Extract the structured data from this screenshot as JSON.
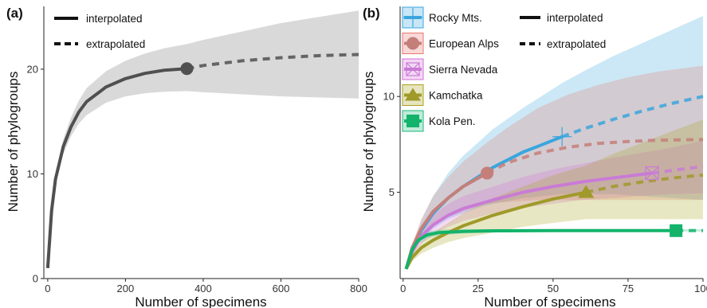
{
  "chart_data": [
    {
      "panel_label": "(a)",
      "type": "line",
      "xlabel": "Number of specimens",
      "ylabel": "Number of phylogroups",
      "xlim": [
        -10,
        800
      ],
      "ylim": [
        0,
        26
      ],
      "xticks": [
        0,
        200,
        400,
        600,
        800
      ],
      "yticks": [
        0,
        10,
        20
      ],
      "grid": false,
      "legend": {
        "placement": "top-left",
        "entries": [
          {
            "label": "interpolated",
            "style": "solid"
          },
          {
            "label": "extrapolated",
            "style": "dashed"
          }
        ]
      },
      "series": [
        {
          "color": "#505050",
          "band_color": "#cccccc",
          "interpolated": {
            "x": [
              0,
              10,
              20,
              40,
              60,
              80,
              100,
              150,
              200,
              250,
              300,
              358
            ],
            "y": [
              1,
              6.5,
              9.5,
              12.6,
              14.5,
              15.9,
              16.9,
              18.3,
              19.1,
              19.6,
              19.9,
              20.05
            ]
          },
          "extrapolated": {
            "x": [
              358,
              400,
              500,
              600,
              700,
              800
            ],
            "y": [
              20.05,
              20.35,
              20.8,
              21.1,
              21.3,
              21.4
            ]
          },
          "lower": [
            1,
            6.3,
            9.1,
            11.9,
            13.6,
            14.8,
            15.6,
            16.8,
            17.4,
            17.7,
            17.85,
            17.9,
            17.8,
            17.6,
            17.4,
            17.3,
            17.2
          ],
          "upper": [
            1,
            6.7,
            9.9,
            13.3,
            15.4,
            17.0,
            18.2,
            19.8,
            20.8,
            21.5,
            22.0,
            22.4,
            22.8,
            23.6,
            24.4,
            25.0,
            25.6
          ],
          "band_x": [
            0,
            10,
            20,
            40,
            60,
            80,
            100,
            150,
            200,
            250,
            300,
            358,
            400,
            500,
            600,
            700,
            800
          ],
          "observed": {
            "x": 358,
            "y": 20.05,
            "marker": "circle"
          }
        }
      ]
    },
    {
      "panel_label": "(b)",
      "type": "line",
      "xlabel": "Number of specimens",
      "ylabel": "Number of phylogroups",
      "xlim": [
        -1,
        100
      ],
      "ylim": [
        0.5,
        14.7
      ],
      "xticks": [
        0,
        25,
        50,
        75,
        100
      ],
      "yticks": [
        5,
        10
      ],
      "grid": false,
      "legend": {
        "placement": "top-left",
        "entries": [
          {
            "label": "interpolated",
            "style": "solid"
          },
          {
            "label": "extrapolated",
            "style": "dashed"
          }
        ]
      },
      "series": [
        {
          "name": "Rocky Mts.",
          "color": "#3aa6dd",
          "marker": "plus",
          "observed": {
            "x": 53,
            "y": 7.9
          },
          "interpolated": {
            "x": [
              1,
              3,
              6,
              10,
              15,
              20,
              25,
              30,
              35,
              40,
              45,
              53
            ],
            "y": [
              1,
              2.0,
              3.0,
              3.9,
              4.7,
              5.3,
              5.8,
              6.3,
              6.7,
              7.1,
              7.4,
              7.9
            ]
          },
          "extrapolated": {
            "x": [
              53,
              60,
              70,
              80,
              90,
              100
            ],
            "y": [
              7.9,
              8.3,
              8.8,
              9.25,
              9.65,
              10.0
            ]
          },
          "band_x": [
            1,
            3,
            6,
            10,
            15,
            20,
            25,
            30,
            40,
            53,
            60,
            70,
            80,
            90,
            100
          ],
          "lower": [
            1,
            1.8,
            2.5,
            3.1,
            3.6,
            3.9,
            4.2,
            4.4,
            4.7,
            4.9,
            4.9,
            4.9,
            4.8,
            4.7,
            4.6
          ],
          "upper": [
            1,
            2.2,
            3.5,
            4.8,
            6.0,
            6.9,
            7.6,
            8.3,
            9.4,
            10.7,
            11.3,
            12.1,
            12.8,
            13.5,
            14.2
          ]
        },
        {
          "name": "European Alps",
          "color": "#e9776e",
          "line_color": "#c47f7a",
          "marker": "circle",
          "observed": {
            "x": 28,
            "y": 6.0
          },
          "interpolated": {
            "x": [
              1,
              3,
              6,
              10,
              15,
              20,
              28
            ],
            "y": [
              1,
              2.1,
              3.1,
              4.0,
              4.7,
              5.3,
              6.0
            ]
          },
          "extrapolated": {
            "x": [
              28,
              35,
              45,
              55,
              65,
              75,
              85,
              100
            ],
            "y": [
              6.0,
              6.55,
              7.05,
              7.35,
              7.55,
              7.65,
              7.72,
              7.75
            ]
          },
          "band_x": [
            1,
            3,
            6,
            10,
            15,
            20,
            28,
            35,
            45,
            55,
            65,
            75,
            85,
            100
          ],
          "lower": [
            1,
            1.9,
            2.6,
            3.2,
            3.7,
            4.0,
            4.4,
            4.5,
            4.6,
            4.6,
            4.6,
            4.6,
            4.6,
            4.6
          ],
          "upper": [
            1,
            2.3,
            3.6,
            4.8,
            5.8,
            6.6,
            7.6,
            8.4,
            9.4,
            10.1,
            10.6,
            11.0,
            11.3,
            11.6
          ]
        },
        {
          "name": "Sierra Nevada",
          "color": "#d36fd8",
          "line_color": "#c97bd6",
          "marker": "square-cross",
          "observed": {
            "x": 83,
            "y": 6.0
          },
          "interpolated": {
            "x": [
              1,
              3,
              6,
              10,
              15,
              20,
              30,
              40,
              50,
              60,
              70,
              83
            ],
            "y": [
              1,
              1.9,
              2.7,
              3.3,
              3.8,
              4.15,
              4.6,
              5.0,
              5.3,
              5.55,
              5.75,
              6.0
            ]
          },
          "extrapolated": {
            "x": [
              83,
              90,
              100
            ],
            "y": [
              6.0,
              6.15,
              6.35
            ]
          },
          "band_x": [
            1,
            3,
            6,
            10,
            15,
            20,
            30,
            40,
            50,
            60,
            70,
            83,
            90,
            100
          ],
          "lower": [
            1,
            1.7,
            2.3,
            2.8,
            3.2,
            3.5,
            3.9,
            4.2,
            4.4,
            4.6,
            4.7,
            4.85,
            4.9,
            4.95
          ],
          "upper": [
            1,
            2.1,
            3.1,
            3.8,
            4.4,
            4.8,
            5.3,
            5.8,
            6.2,
            6.5,
            6.8,
            7.15,
            7.35,
            7.7
          ]
        },
        {
          "name": "Kamchatka",
          "color": "#a8a21a",
          "line_color": "#9f9a2a",
          "marker": "triangle",
          "observed": {
            "x": 61,
            "y": 5.0
          },
          "interpolated": {
            "x": [
              1,
              3,
              6,
              10,
              15,
              20,
              30,
              40,
              50,
              61
            ],
            "y": [
              1,
              1.6,
              2.1,
              2.5,
              2.9,
              3.25,
              3.8,
              4.25,
              4.65,
              5.0
            ]
          },
          "extrapolated": {
            "x": [
              61,
              70,
              80,
              90,
              100
            ],
            "y": [
              5.0,
              5.3,
              5.55,
              5.75,
              5.9
            ]
          },
          "band_x": [
            1,
            3,
            6,
            10,
            15,
            20,
            30,
            40,
            50,
            61,
            70,
            80,
            90,
            100
          ],
          "lower": [
            1,
            1.4,
            1.8,
            2.1,
            2.4,
            2.6,
            2.9,
            3.2,
            3.4,
            3.6,
            3.6,
            3.6,
            3.6,
            3.6
          ],
          "upper": [
            1,
            1.8,
            2.4,
            2.9,
            3.4,
            3.9,
            4.7,
            5.3,
            5.9,
            6.4,
            7.0,
            7.6,
            8.2,
            8.8
          ]
        },
        {
          "name": "Kola Pen.",
          "color": "#1db87a",
          "line_color": "#13b36b",
          "marker": "square",
          "observed": {
            "x": 91,
            "y": 3.0
          },
          "interpolated": {
            "x": [
              1,
              3,
              5,
              8,
              12,
              20,
              30,
              50,
              70,
              91
            ],
            "y": [
              1,
              2.0,
              2.5,
              2.78,
              2.9,
              2.96,
              2.99,
              3.0,
              3.0,
              3.0
            ]
          },
          "extrapolated": {
            "x": [
              91,
              100
            ],
            "y": [
              3.0,
              3.0
            ]
          },
          "band_x": [
            1,
            3,
            5,
            8,
            12,
            20,
            30,
            50,
            70,
            91,
            100
          ],
          "lower": [
            1,
            1.9,
            2.3,
            2.6,
            2.75,
            2.85,
            2.9,
            2.95,
            2.95,
            2.95,
            2.95
          ],
          "upper": [
            1,
            2.1,
            2.7,
            2.95,
            3.05,
            3.07,
            3.08,
            3.08,
            3.08,
            3.08,
            3.08
          ]
        }
      ]
    }
  ]
}
